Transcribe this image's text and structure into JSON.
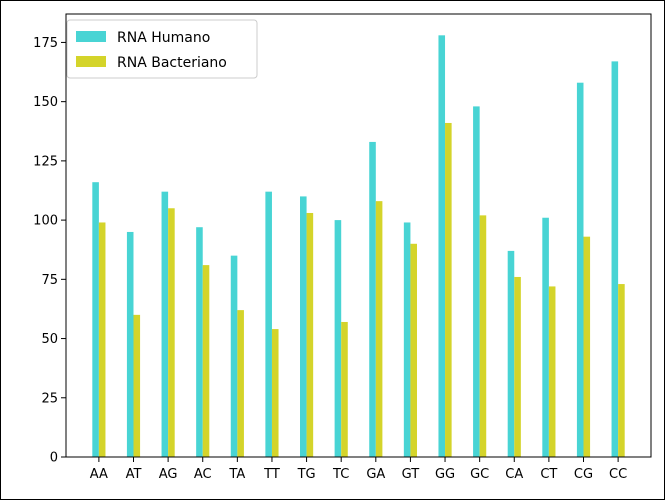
{
  "chart_data": {
    "type": "bar",
    "categories": [
      "AA",
      "AT",
      "AG",
      "AC",
      "TA",
      "TT",
      "TG",
      "TC",
      "GA",
      "GT",
      "GG",
      "GC",
      "CA",
      "CT",
      "CG",
      "CC"
    ],
    "series": [
      {
        "name": "RNA Humano",
        "color": "#48d4d4",
        "values": [
          116,
          95,
          112,
          97,
          85,
          112,
          110,
          100,
          133,
          99,
          178,
          148,
          87,
          101,
          158,
          167
        ]
      },
      {
        "name": "RNA Bacteriano",
        "color": "#d4d42a",
        "values": [
          99,
          60,
          105,
          81,
          62,
          54,
          103,
          57,
          108,
          90,
          141,
          102,
          76,
          72,
          93,
          73
        ]
      }
    ],
    "ylim": [
      0,
      187
    ],
    "yticks": [
      0,
      25,
      50,
      75,
      100,
      125,
      150,
      175
    ],
    "legend_position": "top-left",
    "grid": false
  }
}
